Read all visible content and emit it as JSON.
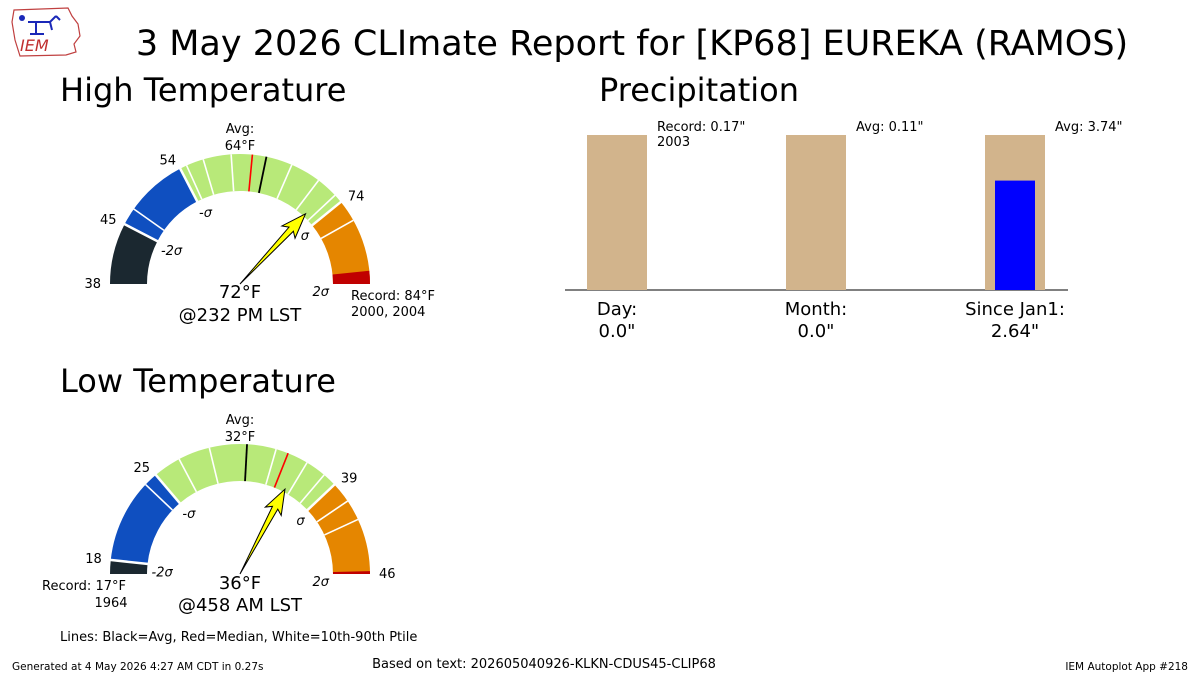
{
  "logo": {
    "text": "IEM"
  },
  "title": "3 May 2026 CLImate Report for [KP68] EUREKA (RAMOS)",
  "colors": {
    "below_2sigma": "#1b2830",
    "below_sigma": "#0f4fc0",
    "normal": "#b8e979",
    "above_sigma": "#e58600",
    "record_band": "#c00000",
    "pointer": "#ffff00",
    "precip_avg_bar": "#d2b48c",
    "precip_obs_bar": "#0000ff",
    "avg_line": "#000000",
    "median_line": "#ff0000",
    "ptile_line": "#ffffff"
  },
  "chart_data": [
    {
      "type": "gauge",
      "title": "High Temperature",
      "range": [
        38,
        84
      ],
      "tick_labels": [
        {
          "value": 38,
          "text": "38"
        },
        {
          "value": 45,
          "text": "45"
        },
        {
          "value": 54,
          "text": "54"
        },
        {
          "value": 74,
          "text": "74"
        }
      ],
      "sigma_labels": [
        {
          "value": 45,
          "text": "-2σ"
        },
        {
          "value": 54,
          "text": "-σ"
        },
        {
          "value": 74,
          "text": "σ"
        },
        {
          "value": 84,
          "text": "2σ"
        }
      ],
      "bands": [
        {
          "from": 38,
          "to": 45,
          "color_key": "below_2sigma"
        },
        {
          "from": 45,
          "to": 54,
          "color_key": "below_sigma"
        },
        {
          "from": 54,
          "to": 74,
          "color_key": "normal"
        },
        {
          "from": 74,
          "to": 84,
          "color_key": "above_sigma"
        }
      ],
      "record_band": [
        82.5,
        84
      ],
      "avg": 64,
      "median": 62.4,
      "ptile_lines": [
        47,
        54.8,
        56.8,
        60,
        67,
        70.5,
        73,
        76.5
      ],
      "observed": 72,
      "avg_label": [
        "Avg:",
        "64°F"
      ],
      "obs_label": [
        "72°F",
        "@232 PM LST"
      ],
      "record_label": [
        "Record: 84°F",
        "2000, 2004"
      ]
    },
    {
      "type": "gauge",
      "title": "Low Temperature",
      "range": [
        17,
        46
      ],
      "tick_labels": [
        {
          "value": 18,
          "text": "18"
        },
        {
          "value": 25,
          "text": "25"
        },
        {
          "value": 39,
          "text": "39"
        },
        {
          "value": 46,
          "text": "46"
        }
      ],
      "sigma_labels": [
        {
          "value": 18,
          "text": "-2σ"
        },
        {
          "value": 25,
          "text": "-σ"
        },
        {
          "value": 39,
          "text": "σ"
        },
        {
          "value": 46,
          "text": "2σ"
        }
      ],
      "bands": [
        {
          "from": 17,
          "to": 18,
          "color_key": "below_2sigma"
        },
        {
          "from": 18,
          "to": 25,
          "color_key": "below_sigma"
        },
        {
          "from": 25,
          "to": 39,
          "color_key": "normal"
        },
        {
          "from": 39,
          "to": 46,
          "color_key": "above_sigma"
        }
      ],
      "record_band": [
        45.8,
        46
      ],
      "avg": 32,
      "median": 35,
      "ptile_lines": [
        24,
        27,
        29.3,
        34.1,
        36.5,
        38,
        40.5,
        42
      ],
      "observed": 36,
      "avg_label": [
        "Avg:",
        "32°F"
      ],
      "obs_label": [
        "36°F",
        "@458 AM LST"
      ],
      "record_label": [
        "Record: 17°F",
        "1964"
      ]
    },
    {
      "type": "bar",
      "title": "Precipitation",
      "categories": [
        "Day:",
        "Month:",
        "Since Jan1:"
      ],
      "avg_values": [
        0.17,
        0.11,
        3.74
      ],
      "obs_values": [
        0.0,
        0.0,
        2.64
      ],
      "value_labels": [
        "0.0\"",
        "0.0\"",
        "2.64\""
      ],
      "annotations": [
        [
          "Record: 0.17\"",
          "2003"
        ],
        [
          "Avg: 0.11\""
        ],
        [
          "Avg: 3.74\""
        ]
      ]
    }
  ],
  "legend_text": "Lines: Black=Avg, Red=Median, White=10th-90th Ptile",
  "footer": {
    "generated": "Generated at 4 May 2026 4:27 AM CDT in 0.27s",
    "based_on": "Based on text: 202605040926-KLKN-CDUS45-CLIP68",
    "app": "IEM Autoplot App #218"
  }
}
